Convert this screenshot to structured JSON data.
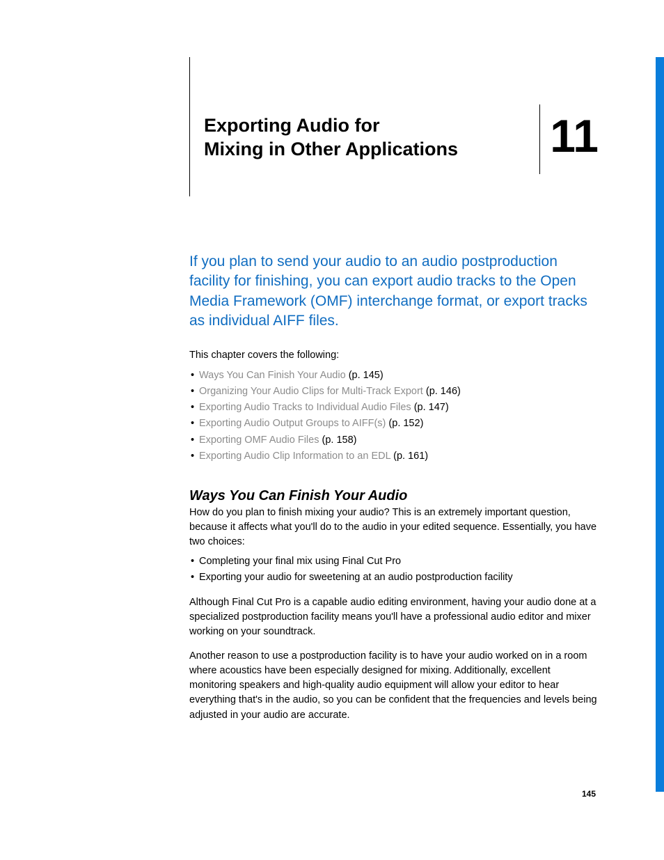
{
  "chapter": {
    "number": "11",
    "title_line1": "Exporting Audio for",
    "title_line2": "Mixing in Other Applications"
  },
  "intro": "If you plan to send your audio to an audio postproduction facility for finishing, you can export audio tracks to the Open Media Framework (OMF) interchange format, or export tracks as individual AIFF files.",
  "covers_label": "This chapter covers the following:",
  "toc": [
    {
      "title": "Ways You Can Finish Your Audio",
      "page": "(p. 145)"
    },
    {
      "title": "Organizing Your Audio Clips for Multi-Track Export",
      "page": "(p. 146)"
    },
    {
      "title": "Exporting Audio Tracks to Individual Audio Files",
      "page": "(p. 147)"
    },
    {
      "title": "Exporting Audio Output Groups to AIFF(s)",
      "page": "(p. 152)"
    },
    {
      "title": "Exporting OMF Audio Files",
      "page": "(p. 158)"
    },
    {
      "title": "Exporting Audio Clip Information to an EDL",
      "page": "(p. 161)"
    }
  ],
  "section": {
    "title": "Ways You Can Finish Your Audio",
    "p1": "How do you plan to finish mixing your audio? This is an extremely important question, because it affects what you'll do to the audio in your edited sequence. Essentially, you have two choices:",
    "bullets": [
      "Completing your final mix using Final Cut Pro",
      "Exporting your audio for sweetening at an audio postproduction facility"
    ],
    "p2": "Although Final Cut Pro is a capable audio editing environment, having your audio done at a specialized postproduction facility means you'll have a professional audio editor and mixer working on your soundtrack.",
    "p3": "Another reason to use a postproduction facility is to have your audio worked on in a room where acoustics have been especially designed for mixing. Additionally, excellent monitoring speakers and high-quality audio equipment will allow your editor to hear everything that's in the audio, so you can be confident that the frequencies and levels being adjusted in your audio are accurate."
  },
  "page_number": "145",
  "colors": {
    "accent": "#0a7ddb",
    "link_gray": "#8c8c8c",
    "intro_blue": "#106dc1"
  }
}
